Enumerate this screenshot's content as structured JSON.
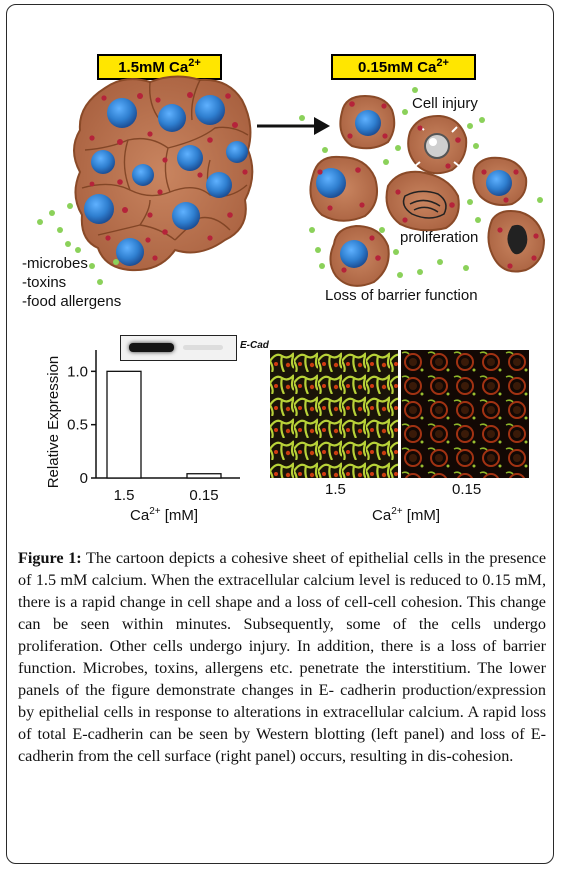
{
  "top_panel": {
    "left_condition": {
      "value": "1.5mM Ca",
      "sup": "2+"
    },
    "right_condition": {
      "value": "0.15mM Ca",
      "sup": "2+"
    },
    "cell_injury_label": "Cell injury",
    "proliferation_label": "proliferation",
    "loss_label": "Loss of barrier function",
    "penetrants": [
      "-microbes",
      "-toxins",
      "-food allergens"
    ]
  },
  "bottom_panel": {
    "blot_label": "E-Cad",
    "micrograph_xlabels": [
      "1.5",
      "0.15"
    ],
    "micrograph_axis_label": {
      "base": "Ca",
      "sup": "2+",
      "unit": " [mM]"
    }
  },
  "chart_data": {
    "type": "bar",
    "categories": [
      "1.5",
      "0.15"
    ],
    "values": [
      1.0,
      0.04
    ],
    "ylabel": "Relative Expression",
    "xlabel_base": "Ca",
    "xlabel_sup": "2+",
    "xlabel_unit": " [mM]",
    "yticks": [
      "0",
      "0.5",
      "1.0"
    ],
    "ylim": [
      0,
      1.2
    ]
  },
  "caption": {
    "label": "Figure 1:",
    "text": " The cartoon depicts a cohesive sheet of epithelial cells in the presence of 1.5 mM calcium. When the extracellular calcium level is reduced to 0.15 mM, there is a rapid change in cell shape and a loss of cell-cell cohesion. This change can be seen within minutes. Subsequently, some of the cells undergo proliferation. Other cells undergo injury. In addition, there is a loss of barrier function. Microbes, toxins, allergens etc. penetrate the interstitium. The lower panels of the figure demonstrate changes in E- cadherin production/expression by epithelial cells in response to alterations in extracellular calcium. A rapid loss of total E-cadherin can be seen by Western blotting (left panel) and loss of E-cadherin from the cell surface (right panel) occurs, resulting in dis-cohesion."
  },
  "colors": {
    "cell_fill": "#b8704e",
    "cell_border": "#8a4a28",
    "nucleus": "#2f7fd0",
    "granule": "#b5233a",
    "microbe": "#8bd15a",
    "label_bg": "#ffe600"
  }
}
